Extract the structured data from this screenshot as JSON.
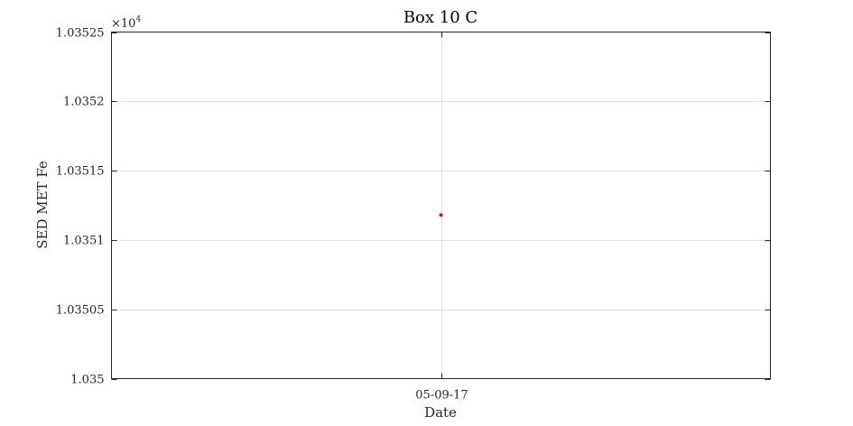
{
  "chart_data": {
    "type": "scatter",
    "title": "Box 10 C",
    "xlabel": "Date",
    "ylabel": "SED MET Fe",
    "x_tick_labels": [
      "05-09-17"
    ],
    "y_tick_labels": [
      "1.035",
      "1.03505",
      "1.0351",
      "1.03515",
      "1.0352",
      "1.03525"
    ],
    "y_ticks": [
      1.035,
      1.03505,
      1.0351,
      1.03515,
      1.0352,
      1.03525
    ],
    "ylim": [
      1.035,
      1.03525
    ],
    "y_multiplier": "×10",
    "y_multiplier_exponent": "4",
    "grid": true,
    "series": [
      {
        "x": [
          "05-09-17"
        ],
        "values": [
          1.035118
        ],
        "color": "#ff0000"
      }
    ]
  }
}
